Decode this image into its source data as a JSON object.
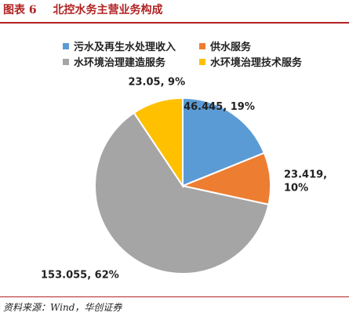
{
  "header": {
    "figure_number": "图表 6",
    "title": "北控水务主营业务构成"
  },
  "source": "资料来源：Wind，华创证券",
  "chart_data": {
    "type": "pie",
    "title": "",
    "legend_position": "top",
    "slices": [
      {
        "name": "污水及再生水处理收入",
        "value": 46.445,
        "percent": 19,
        "color": "#5b9bd5",
        "label": "46.445, 19%"
      },
      {
        "name": "供水服务",
        "value": 23.419,
        "percent": 10,
        "color": "#ed7d31",
        "label": "23.419, 10%",
        "label_lines": [
          "23.419,",
          "10%"
        ]
      },
      {
        "name": "水环境治理建造服务",
        "value": 153.055,
        "percent": 62,
        "color": "#a5a5a5",
        "label": "153.055, 62%"
      },
      {
        "name": "水环境治理技术服务",
        "value": 23.05,
        "percent": 9,
        "color": "#ffc000",
        "label": "23.05, 9%"
      }
    ]
  }
}
